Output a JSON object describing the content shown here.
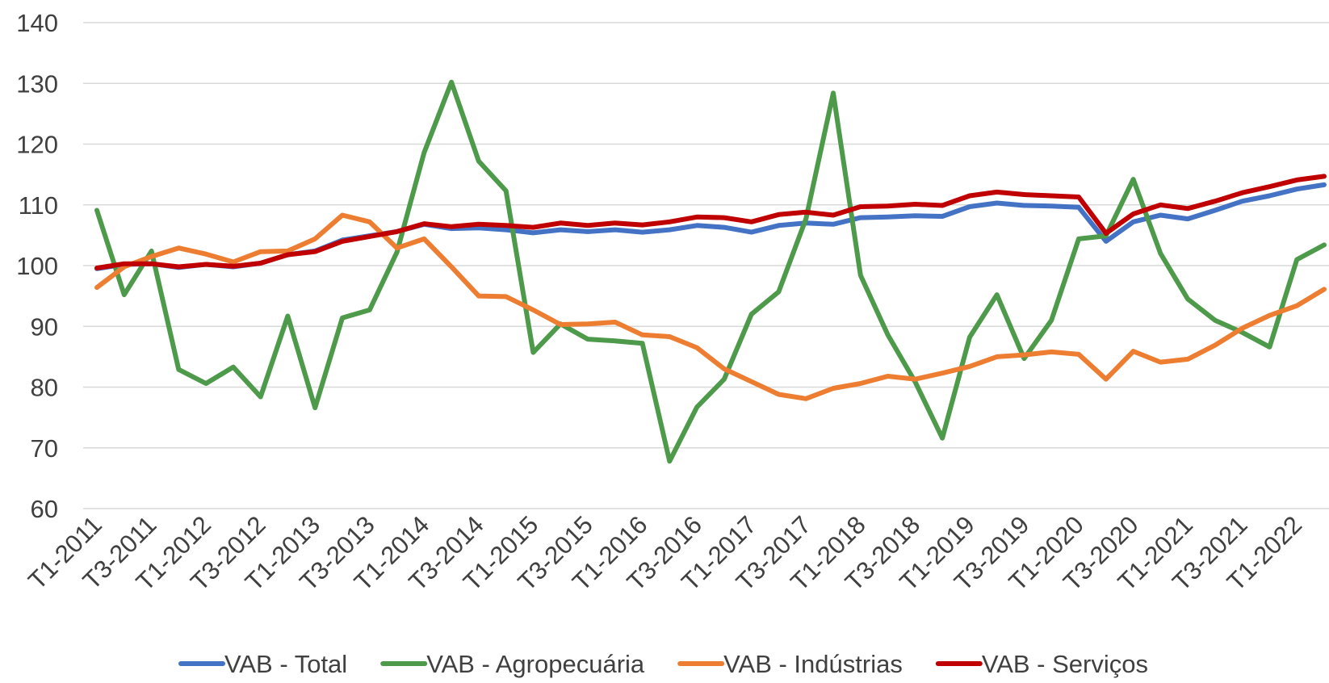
{
  "chart_data": {
    "type": "line",
    "categories": [
      "T1-2011",
      null,
      "T3-2011",
      null,
      "T1-2012",
      null,
      "T3-2012",
      null,
      "T1-2013",
      null,
      "T3-2013",
      null,
      "T1-2014",
      null,
      "T3-2014",
      null,
      "T1-2015",
      null,
      "T3-2015",
      null,
      "T1-2016",
      null,
      "T3-2016",
      null,
      "T1-2017",
      null,
      "T3-2017",
      null,
      "T1-2018",
      null,
      "T3-2018",
      null,
      "T1-2019",
      null,
      "T3-2019",
      null,
      "T1-2020",
      null,
      "T3-2020",
      null,
      "T1-2021",
      null,
      "T3-2021",
      null,
      "T1-2022",
      null
    ],
    "series": [
      {
        "name": "VAB - Total",
        "color": "#4472c4",
        "values": [
          99.5,
          100.2,
          100.3,
          99.7,
          100.2,
          99.8,
          100.4,
          101.8,
          102.4,
          104.2,
          104.9,
          105.6,
          106.8,
          106.1,
          106.2,
          105.9,
          105.4,
          105.9,
          105.6,
          105.9,
          105.5,
          105.9,
          106.6,
          106.3,
          105.5,
          106.6,
          107.0,
          106.8,
          107.9,
          108.0,
          108.2,
          108.1,
          109.7,
          110.3,
          109.9,
          109.8,
          109.6,
          104.0,
          107.2,
          108.3,
          107.7,
          109.1,
          110.6,
          111.5,
          112.6,
          113.3
        ]
      },
      {
        "name": "VAB - Agropecuária",
        "color": "#4e9a4b",
        "values": [
          109.1,
          95.2,
          102.4,
          82.9,
          80.6,
          83.3,
          78.4,
          91.7,
          76.6,
          91.4,
          92.7,
          102.2,
          118.6,
          130.2,
          117.2,
          112.3,
          85.7,
          90.4,
          87.9,
          87.6,
          87.2,
          67.8,
          76.7,
          81.3,
          92.0,
          95.7,
          107.7,
          128.4,
          98.4,
          88.6,
          80.9,
          71.6,
          88.2,
          95.2,
          84.7,
          91.0,
          104.4,
          104.9,
          114.2,
          102.0,
          94.5,
          91.0,
          89.0,
          86.6,
          101.0,
          103.4
        ]
      },
      {
        "name": "VAB - Indústrias",
        "color": "#ed7d31",
        "values": [
          96.4,
          99.8,
          101.5,
          102.9,
          101.9,
          100.6,
          102.3,
          102.4,
          104.4,
          108.3,
          107.2,
          102.9,
          104.4,
          99.8,
          95.0,
          94.9,
          92.7,
          90.3,
          90.4,
          90.7,
          88.6,
          88.3,
          86.5,
          83.0,
          80.9,
          78.8,
          78.1,
          79.8,
          80.6,
          81.8,
          81.3,
          82.3,
          83.4,
          85.0,
          85.3,
          85.8,
          85.4,
          81.3,
          85.9,
          84.1,
          84.6,
          86.9,
          89.7,
          91.8,
          93.4,
          96.1
        ]
      },
      {
        "name": "VAB - Serviços",
        "color": "#c00000",
        "values": [
          99.6,
          100.3,
          100.3,
          99.8,
          100.2,
          99.9,
          100.4,
          101.8,
          102.3,
          104.0,
          104.8,
          105.6,
          106.9,
          106.4,
          106.8,
          106.6,
          106.3,
          107.0,
          106.6,
          107.0,
          106.7,
          107.2,
          108.0,
          107.9,
          107.2,
          108.4,
          108.8,
          108.3,
          109.7,
          109.8,
          110.1,
          109.9,
          111.5,
          112.1,
          111.7,
          111.5,
          111.3,
          105.3,
          108.5,
          110.0,
          109.4,
          110.6,
          112.0,
          113.0,
          114.1,
          114.7
        ]
      }
    ],
    "ylim": [
      60,
      140
    ],
    "yticks": [
      60,
      70,
      80,
      90,
      100,
      110,
      120,
      130,
      140
    ],
    "grid": true,
    "legend": "bottom"
  }
}
